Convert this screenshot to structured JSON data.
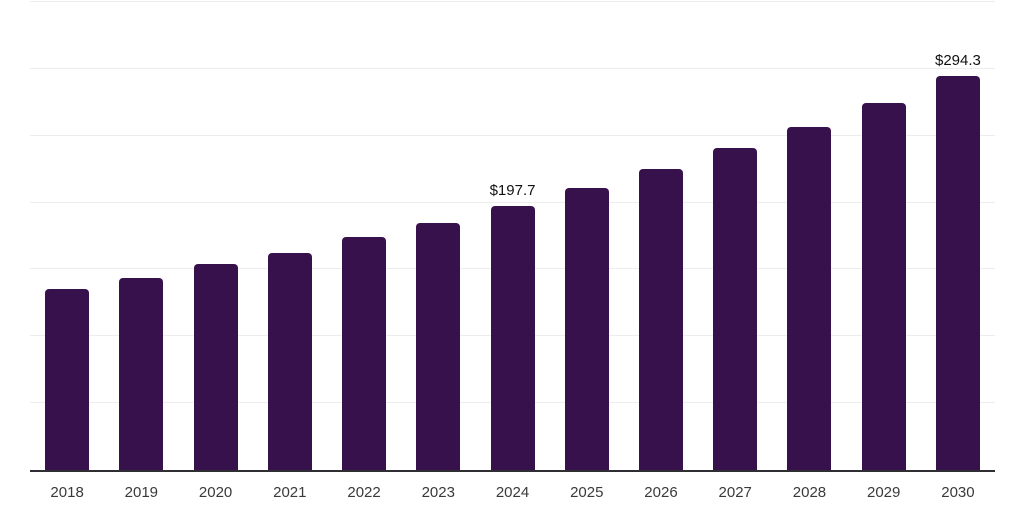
{
  "chart_data": {
    "type": "bar",
    "title": "",
    "categories": [
      "2018",
      "2019",
      "2020",
      "2021",
      "2022",
      "2023",
      "2024",
      "2025",
      "2026",
      "2027",
      "2028",
      "2029",
      "2030"
    ],
    "values": [
      135.2,
      143.5,
      153.8,
      162.4,
      173.9,
      185.0,
      197.7,
      211.0,
      225.4,
      240.5,
      256.9,
      274.8,
      294.3
    ],
    "data_labels": {
      "2024": "$197.7",
      "2030": "$294.3"
    },
    "value_prefix": "$",
    "ylim": [
      0,
      350
    ],
    "gridline_step": 50,
    "grid": true,
    "legend_position": "none",
    "y_axis_tick_labels_visible": false,
    "colors": {
      "bar": "#36114C",
      "gridline": "#EDEDED",
      "axis_line": "#2F2F33",
      "year_label_text": "#3A3A3A",
      "data_label_text": "#111111",
      "background": "#FFFFFF"
    }
  }
}
